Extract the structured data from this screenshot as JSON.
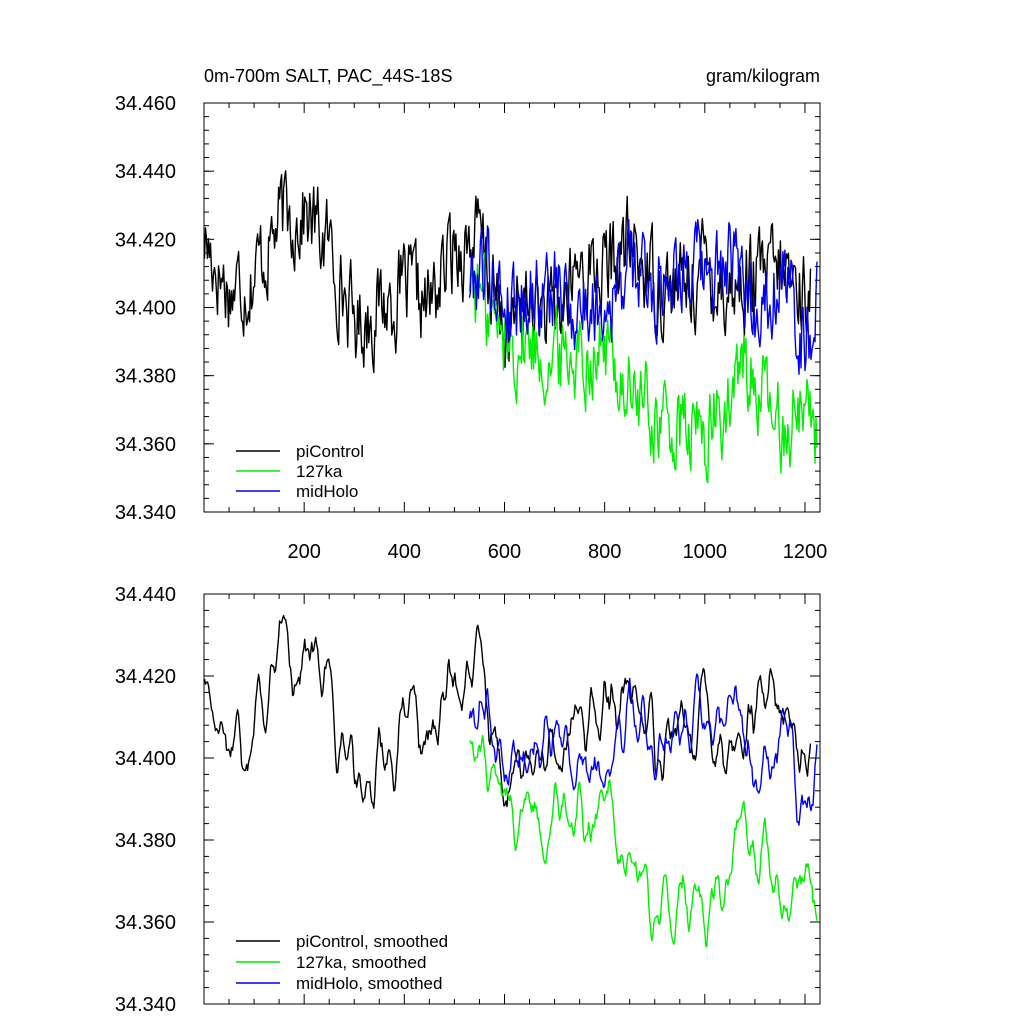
{
  "chart_data": [
    {
      "type": "line",
      "title_left": "0m-700m SALT, PAC_44S-18S",
      "title_right": "gram/kilogram",
      "xlim": [
        0,
        1230
      ],
      "ylim": [
        34.34,
        34.46
      ],
      "x_ticks": [
        200,
        400,
        600,
        800,
        1000,
        1200
      ],
      "x_tick_labels": [
        "200",
        "400",
        "600",
        "800",
        "1000",
        "1200"
      ],
      "y_ticks": [
        34.34,
        34.36,
        34.38,
        34.4,
        34.42,
        34.44,
        34.46
      ],
      "y_tick_labels": [
        "34.340",
        "34.360",
        "34.380",
        "34.400",
        "34.420",
        "34.440",
        "34.460"
      ],
      "legend": {
        "position": "bottom-left",
        "entries": [
          "piControl",
          "127ka",
          "midHolo"
        ]
      },
      "series": [
        {
          "name": "piControl",
          "color": "#000000",
          "x": [
            1,
            50,
            100,
            150,
            200,
            250,
            300,
            350,
            400,
            450,
            500,
            550,
            600,
            650,
            700,
            750,
            800,
            850,
            900,
            950,
            1000,
            1050,
            1100,
            1150,
            1200,
            1212
          ],
          "y": [
            34.42,
            34.405,
            34.41,
            34.425,
            34.428,
            34.418,
            34.395,
            34.4,
            34.405,
            34.4,
            34.418,
            34.42,
            34.392,
            34.402,
            34.395,
            34.412,
            34.41,
            34.418,
            34.408,
            34.405,
            34.412,
            34.405,
            34.408,
            34.41,
            34.405,
            34.407
          ]
        },
        {
          "name": "127ka",
          "color": "#00ee00",
          "x": [
            530,
            570,
            600,
            650,
            700,
            750,
            800,
            850,
            900,
            950,
            1000,
            1050,
            1080,
            1100,
            1150,
            1200,
            1225
          ],
          "y": [
            34.41,
            34.398,
            34.39,
            34.39,
            34.385,
            34.388,
            34.388,
            34.375,
            34.368,
            34.362,
            34.363,
            34.37,
            34.385,
            34.378,
            34.363,
            34.375,
            34.362
          ]
        },
        {
          "name": "midHolo",
          "color": "#0000ee",
          "x": [
            530,
            560,
            600,
            650,
            700,
            750,
            800,
            850,
            900,
            950,
            1000,
            1050,
            1100,
            1150,
            1200,
            1225
          ],
          "y": [
            34.408,
            34.415,
            34.402,
            34.405,
            34.405,
            34.4,
            34.402,
            34.412,
            34.405,
            34.415,
            34.408,
            34.412,
            34.4,
            34.41,
            34.392,
            34.402
          ]
        }
      ]
    },
    {
      "type": "line",
      "xlim": [
        0,
        1230
      ],
      "ylim": [
        34.34,
        34.44
      ],
      "x_ticks": [
        200,
        400,
        600,
        800,
        1000,
        1200
      ],
      "y_ticks": [
        34.34,
        34.36,
        34.38,
        34.4,
        34.42,
        34.44
      ],
      "y_tick_labels": [
        "34.340",
        "34.360",
        "34.380",
        "34.400",
        "34.420",
        "34.440"
      ],
      "legend": {
        "position": "bottom-left",
        "entries": [
          "piControl, smoothed",
          "127ka, smoothed",
          "midHolo, smoothed"
        ]
      },
      "series": [
        {
          "name": "piControl, smoothed",
          "color": "#000000",
          "x": [
            1,
            50,
            100,
            150,
            200,
            250,
            300,
            350,
            400,
            450,
            500,
            550,
            600,
            650,
            700,
            750,
            800,
            850,
            900,
            950,
            1000,
            1050,
            1100,
            1150,
            1200,
            1212
          ],
          "y": [
            34.42,
            34.405,
            34.41,
            34.425,
            34.427,
            34.418,
            34.395,
            34.4,
            34.405,
            34.402,
            34.42,
            34.423,
            34.39,
            34.4,
            34.395,
            34.412,
            34.41,
            34.415,
            34.408,
            34.405,
            34.412,
            34.403,
            34.41,
            34.41,
            34.402,
            34.406
          ]
        },
        {
          "name": "127ka, smoothed",
          "color": "#00ee00",
          "x": [
            530,
            570,
            600,
            650,
            700,
            750,
            800,
            850,
            900,
            950,
            1000,
            1050,
            1080,
            1100,
            1150,
            1200,
            1225
          ],
          "y": [
            34.405,
            34.395,
            34.39,
            34.39,
            34.385,
            34.39,
            34.39,
            34.375,
            34.363,
            34.362,
            34.363,
            34.37,
            34.387,
            34.378,
            34.365,
            34.375,
            34.362
          ]
        },
        {
          "name": "midHolo, smoothed",
          "color": "#0000ee",
          "x": [
            530,
            560,
            600,
            650,
            700,
            750,
            800,
            850,
            900,
            950,
            1000,
            1050,
            1100,
            1150,
            1200,
            1225
          ],
          "y": [
            34.41,
            34.415,
            34.4,
            34.405,
            34.405,
            34.4,
            34.4,
            34.41,
            34.402,
            34.413,
            34.405,
            34.41,
            34.398,
            34.41,
            34.39,
            34.403
          ]
        }
      ]
    }
  ]
}
